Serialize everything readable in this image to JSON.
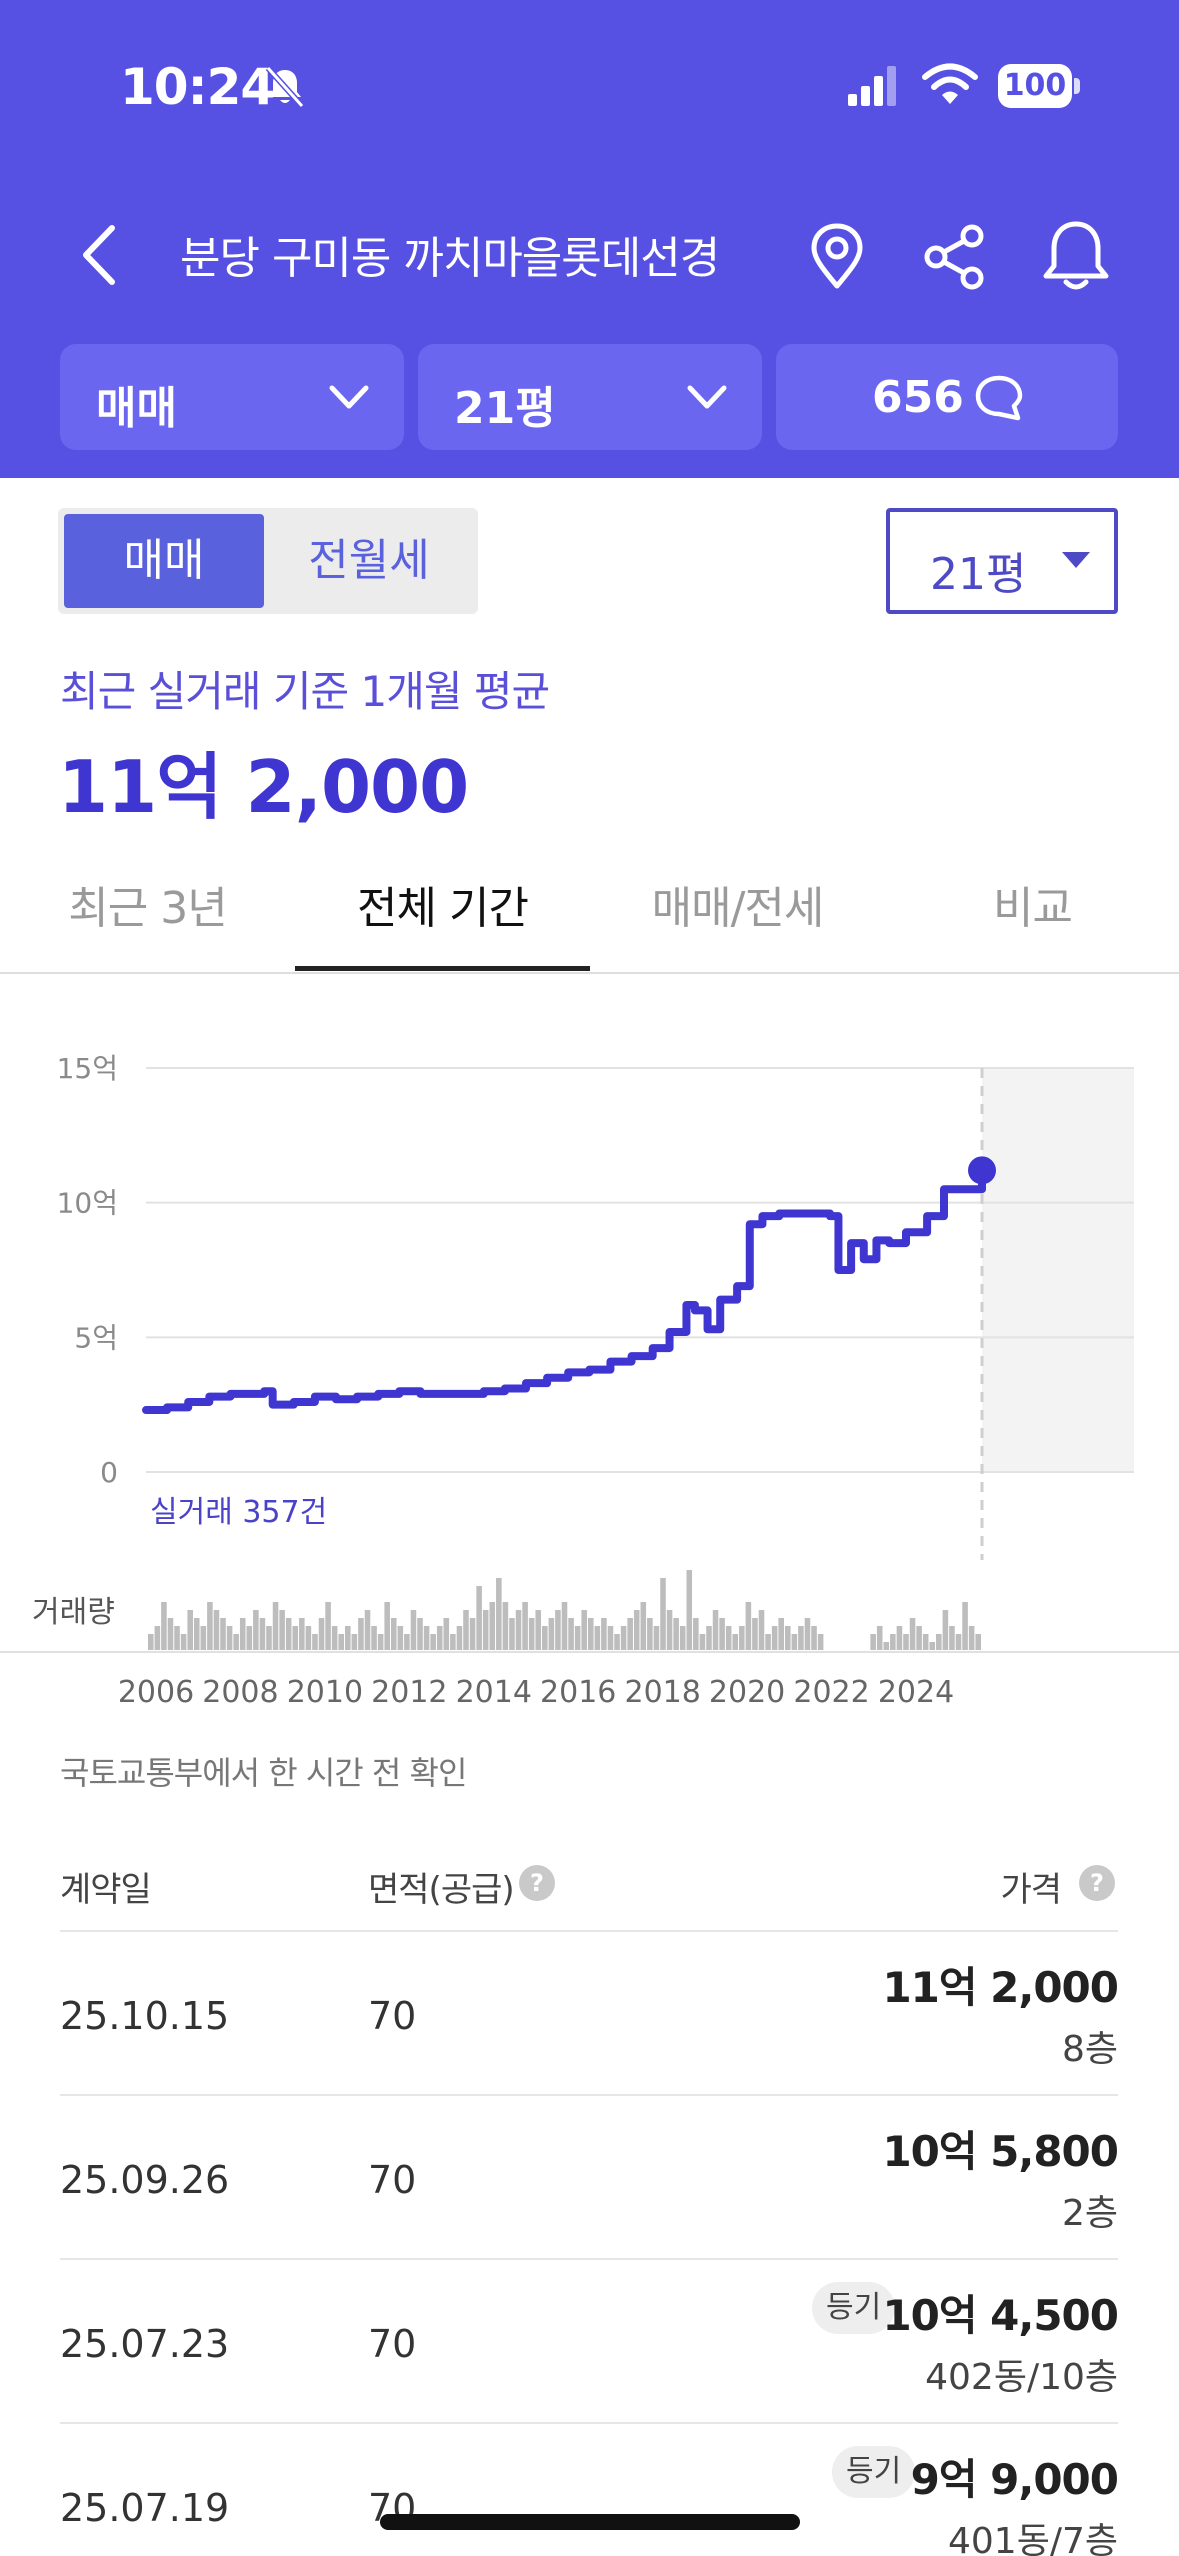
{
  "status_bar": {
    "time": "10:24",
    "battery": "100",
    "icons": [
      "bell-slash-icon",
      "signal-icon",
      "wifi-icon",
      "battery-icon"
    ]
  },
  "header": {
    "title": "분당 구미동 까치마을롯데선경",
    "icons": [
      "back-icon",
      "map-pin-icon",
      "share-icon",
      "bell-icon"
    ],
    "selectors": {
      "deal_type": "매매",
      "size": "21평",
      "comments": "656"
    }
  },
  "segment": {
    "sale": "매매",
    "rent": "전월세",
    "selected": "매매"
  },
  "size_dropdown": "21평",
  "summary": {
    "label": "최근 실거래 기준 1개월 평균",
    "price": "11억 2,000"
  },
  "tabs": [
    "최근 3년",
    "전체 기간",
    "매매/전세",
    "비교"
  ],
  "active_tab": "전체 기간",
  "chart_data": {
    "type": "line",
    "y_ticks": [
      "15억",
      "10억",
      "5억",
      "0"
    ],
    "ylim": [
      0,
      15
    ],
    "y_unit": "억",
    "x_ticks": [
      "2006",
      "2008",
      "2010",
      "2012",
      "2014",
      "2016",
      "2018",
      "2020",
      "2022",
      "2024"
    ],
    "trade_count_label": "실거래 357건",
    "volume_label": "거래량",
    "series": [
      {
        "x": [
          2006.0,
          2006.5,
          2007.0,
          2007.5,
          2008.0,
          2008.8,
          2009.0,
          2009.5,
          2010.0,
          2010.5,
          2011.0,
          2011.5,
          2012.0,
          2012.5,
          2013.0,
          2013.5,
          2014.0,
          2014.5,
          2015.0,
          2015.5,
          2016.0,
          2016.5,
          2017.0,
          2017.5,
          2018.0,
          2018.4,
          2018.8,
          2019.0,
          2019.3,
          2019.6,
          2020.0,
          2020.3,
          2020.6,
          2021.0,
          2021.5,
          2022.0,
          2022.2,
          2022.4,
          2022.7,
          2023.0,
          2023.3,
          2023.6,
          2024.0,
          2024.5,
          2024.9,
          2025.8
        ],
        "y": [
          2.3,
          2.4,
          2.6,
          2.8,
          2.9,
          3.0,
          2.5,
          2.6,
          2.8,
          2.7,
          2.8,
          2.9,
          3.0,
          2.9,
          2.9,
          2.9,
          3.0,
          3.1,
          3.3,
          3.5,
          3.7,
          3.8,
          4.1,
          4.3,
          4.6,
          5.2,
          6.2,
          6.0,
          5.3,
          6.4,
          6.9,
          9.2,
          9.5,
          9.6,
          9.6,
          9.6,
          9.5,
          7.5,
          8.5,
          7.9,
          8.6,
          8.5,
          8.9,
          9.5,
          10.5,
          11.2
        ]
      }
    ],
    "volume": [
      2,
      3,
      6,
      4,
      3,
      2,
      5,
      4,
      3,
      6,
      5,
      4,
      3,
      2,
      4,
      3,
      5,
      4,
      3,
      6,
      5,
      4,
      3,
      4,
      3,
      2,
      4,
      6,
      3,
      2,
      3,
      2,
      4,
      5,
      3,
      2,
      6,
      4,
      3,
      2,
      5,
      4,
      3,
      2,
      3,
      4,
      2,
      3,
      5,
      4,
      8,
      5,
      6,
      9,
      6,
      4,
      5,
      6,
      4,
      5,
      3,
      4,
      5,
      6,
      4,
      3,
      5,
      4,
      3,
      4,
      3,
      2,
      3,
      4,
      5,
      6,
      4,
      3,
      9,
      5,
      4,
      3,
      10,
      4,
      2,
      3,
      5,
      4,
      3,
      2,
      3,
      6,
      4,
      5,
      2,
      3,
      4,
      3,
      2,
      3,
      4,
      3,
      2,
      0,
      0,
      0,
      0,
      0,
      0,
      0,
      2,
      3,
      1,
      2,
      3,
      2,
      4,
      3,
      2,
      1,
      2,
      5,
      3,
      2,
      6,
      3,
      2
    ]
  },
  "source_note": "국토교통부에서 한 시간 전 확인",
  "table": {
    "headers": {
      "date": "계약일",
      "area": "면적(공급)",
      "price": "가격"
    },
    "rows": [
      {
        "date": "25.10.15",
        "area": "70",
        "price": "11억 2,000",
        "floor": "8층",
        "badge": ""
      },
      {
        "date": "25.09.26",
        "area": "70",
        "price": "10억 5,800",
        "floor": "2층",
        "badge": ""
      },
      {
        "date": "25.07.23",
        "area": "70",
        "price": "10억 4,500",
        "floor": "402동/10층",
        "badge": "등기"
      },
      {
        "date": "25.07.19",
        "area": "70",
        "price": "9억 9,000",
        "floor": "401동/7층",
        "badge": "등기"
      }
    ]
  },
  "colors": {
    "brand": "#5751e3",
    "line": "#3f35d0",
    "accent_text": "#5a4fd9"
  }
}
